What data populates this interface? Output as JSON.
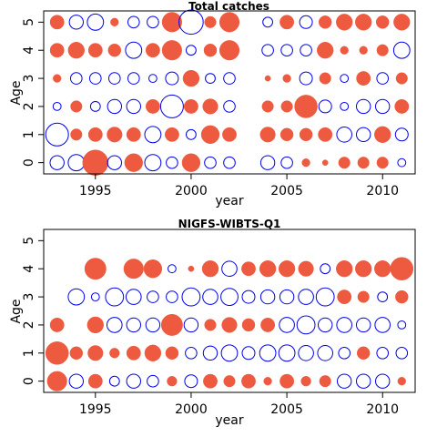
{
  "colors": {
    "positive": "#EE5A40",
    "negative": "#0000EE"
  },
  "chart_data": [
    {
      "type": "bubble",
      "title": "Total catches",
      "xlabel": "year",
      "ylabel": "Age",
      "xlim": [
        1992.3,
        2011.7
      ],
      "ylim": [
        -0.4,
        5.4
      ],
      "x_ticks": [
        1995,
        2000,
        2005,
        2010
      ],
      "y_ticks": [
        0,
        1,
        2,
        3,
        4,
        5
      ],
      "years": [
        1993,
        1994,
        1995,
        1996,
        1997,
        1998,
        1999,
        2000,
        2001,
        2002,
        2003,
        2004,
        2005,
        2006,
        2007,
        2008,
        2009,
        2010,
        2011
      ],
      "residuals": [
        [
          -0.3,
          -0.4,
          1.0,
          -0.3,
          0.5,
          -0.4,
          -0.2,
          0.5,
          -0.2,
          -0.2,
          null,
          -0.3,
          -0.2,
          0.1,
          0.05,
          0.2,
          0.2,
          0.2,
          -0.1
        ],
        [
          -0.8,
          0.2,
          0.3,
          0.35,
          0.3,
          -0.4,
          0.3,
          -0.15,
          0.5,
          0.3,
          null,
          0.35,
          0.25,
          0.25,
          0.3,
          -0.35,
          -0.3,
          0.4,
          -0.25
        ],
        [
          -0.1,
          0.2,
          -0.15,
          -0.3,
          -0.3,
          0.3,
          -0.8,
          0.3,
          0.35,
          -0.2,
          null,
          0.2,
          0.2,
          0.8,
          -0.25,
          -0.1,
          -0.3,
          -0.3,
          0.3
        ],
        [
          0.1,
          -0.2,
          -0.2,
          -0.2,
          -0.2,
          -0.1,
          -0.25,
          0.4,
          -0.15,
          -0.2,
          null,
          0.05,
          0.1,
          -0.25,
          0.2,
          -0.1,
          0.3,
          -0.2,
          0.2
        ],
        [
          0.3,
          0.4,
          0.3,
          0.25,
          -0.4,
          0.3,
          0.6,
          -0.15,
          0.25,
          0.6,
          null,
          -0.2,
          -0.2,
          -0.2,
          0.4,
          0.1,
          0.1,
          0.2,
          -0.4
        ],
        [
          0.3,
          -0.3,
          -0.4,
          0.1,
          -0.2,
          -0.2,
          0.6,
          -0.9,
          0.2,
          0.6,
          null,
          -0.15,
          0.3,
          -0.25,
          0.25,
          0.4,
          0.4,
          0.25,
          0.4
        ]
      ]
    },
    {
      "type": "bubble",
      "title": "NIGFS-WIBTS-Q1",
      "xlabel": "year",
      "ylabel": "Age",
      "xlim": [
        1992.3,
        2011.7
      ],
      "ylim": [
        -0.4,
        5.4
      ],
      "x_ticks": [
        1995,
        2000,
        2005,
        2010
      ],
      "y_ticks": [
        0,
        1,
        2,
        3,
        4,
        5
      ],
      "years": [
        1993,
        1994,
        1995,
        1996,
        1997,
        1998,
        1999,
        2000,
        2001,
        2002,
        2003,
        2004,
        2005,
        2006,
        2007,
        2008,
        2009,
        2010,
        2011
      ],
      "residuals": [
        [
          0.6,
          -0.3,
          0.3,
          -0.15,
          -0.3,
          -0.2,
          0.15,
          -0.25,
          0.3,
          0.2,
          0.3,
          0.1,
          0.3,
          0.15,
          0.2,
          -0.3,
          -0.3,
          -0.3,
          0.1
        ],
        [
          0.8,
          0.25,
          0.35,
          0.15,
          0.3,
          0.4,
          0.25,
          -0.2,
          -0.3,
          -0.4,
          -0.25,
          -0.4,
          -0.4,
          -0.35,
          -0.35,
          -0.2,
          0.25,
          -0.2,
          -0.2
        ],
        [
          0.3,
          null,
          0.4,
          -0.35,
          -0.3,
          -0.3,
          0.7,
          -0.3,
          0.2,
          0.35,
          0.25,
          0.3,
          -0.35,
          -0.5,
          -0.3,
          -0.35,
          -0.3,
          -0.35,
          -0.1
        ],
        [
          null,
          -0.4,
          -0.1,
          -0.5,
          -0.35,
          -0.2,
          -0.2,
          -0.5,
          -0.35,
          -0.45,
          -0.25,
          -0.3,
          -0.3,
          -0.35,
          -0.5,
          0.3,
          0.2,
          -0.15,
          0.25
        ],
        [
          null,
          null,
          0.7,
          null,
          0.6,
          0.5,
          -0.1,
          0.05,
          0.4,
          -0.35,
          0.3,
          0.4,
          0.4,
          0.35,
          -0.15,
          0.4,
          0.4,
          0.4,
          0.8
        ],
        [
          null,
          null,
          null,
          null,
          null,
          null,
          null,
          null,
          null,
          null,
          null,
          null,
          null,
          null,
          null,
          null,
          null,
          null,
          null
        ]
      ]
    }
  ]
}
